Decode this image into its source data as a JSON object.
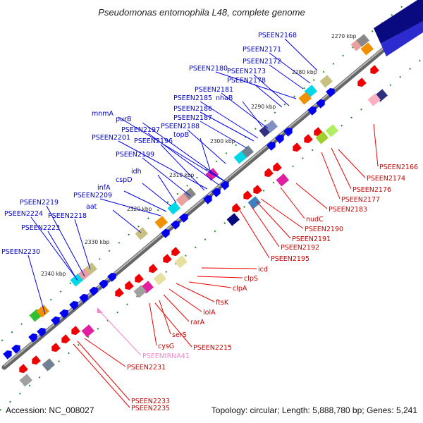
{
  "title": "Pseudomonas entomophila L48, complete genome",
  "footer": {
    "accession": "Accession: NC_008027",
    "stats": "Topology: circular; Length: 5,888,780 bp; Genes: 5,241"
  },
  "colors": {
    "forward": "#0000ee",
    "reverse": "#ee0000",
    "trna": "#ee88cc",
    "backbone": "#888888",
    "tick": "#2a8a2a"
  },
  "kbp_labels": [
    "2270 kbp",
    "2280 kbp",
    "2290 kbp",
    "2300 kbp",
    "2310 kbp",
    "2320 kbp",
    "2330 kbp",
    "2340 kbp"
  ],
  "blue_labels": [
    "PSEEN2168",
    "PSEEN2171",
    "PSEEN2172",
    "PSEEN2180",
    "PSEEN2173",
    "PSEEN2178",
    "PSEEN2181",
    "nhaB",
    "PSEEN2185",
    "PSEEN2186",
    "mnmA",
    "PSEEN2187",
    "purB",
    "PSEEN2188",
    "PSEEN2197",
    "topB",
    "PSEEN2201",
    "PSEEN2196",
    "PSEEN2199",
    "idh",
    "cspD",
    "infA",
    "PSEEN2209",
    "aat",
    "PSEEN2219",
    "PSEEN2218",
    "PSEEN2224",
    "PSEEN2223",
    "PSEEN2230"
  ],
  "red_labels": [
    "PSEEN2166",
    "PSEEN2174",
    "PSEEN2176",
    "PSEEN2177",
    "PSEEN2183",
    "nudC",
    "PSEEN2190",
    "PSEEN2191",
    "PSEEN2192",
    "PSEEN2195",
    "icd",
    "clpS",
    "clpA",
    "ftsK",
    "lolA",
    "rarA",
    "serS",
    "PSEEN2215",
    "cysG",
    "PSEEN2231",
    "PSEEN2233",
    "PSEEN2235"
  ],
  "pink_labels": [
    "PSEENtRNA41"
  ]
}
